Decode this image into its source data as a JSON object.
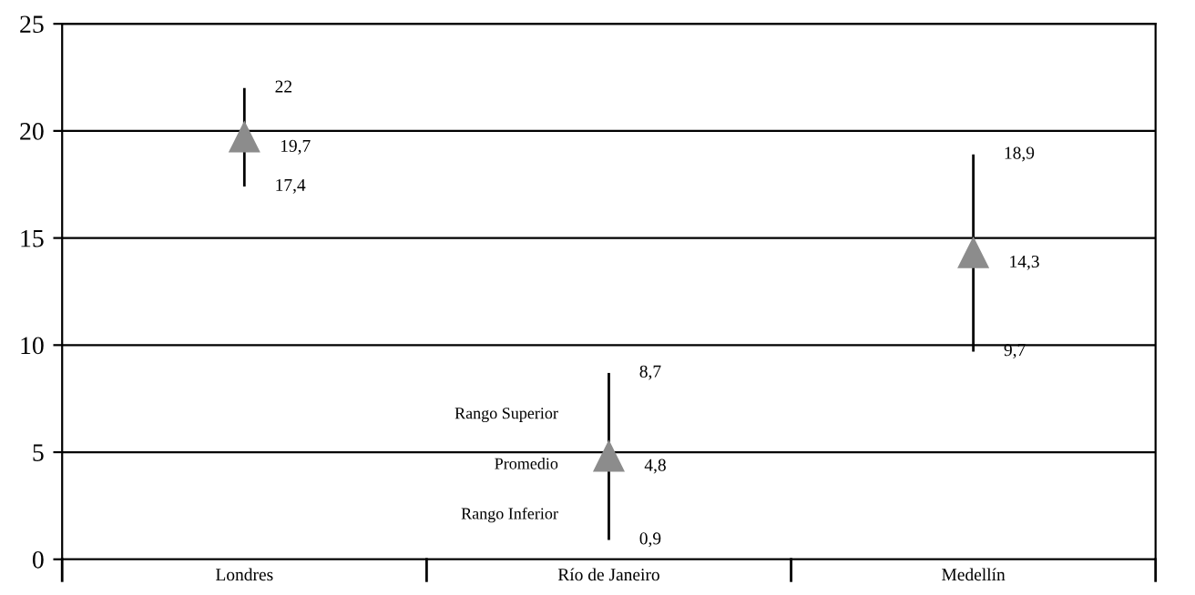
{
  "chart_data": {
    "type": "scatter",
    "categories": [
      "Londres",
      "Río de Janeiro",
      "Medellín"
    ],
    "series": [
      {
        "color": "#8c8c8c",
        "values": [
          19.7,
          4.8,
          14.3
        ],
        "errors": [
          2.3,
          3.9,
          4.6
        ],
        "value_labels": [
          "19,7",
          "4,8",
          "14,3"
        ]
      }
    ],
    "marker": "triangle",
    "ylim": [
      0,
      25
    ],
    "yticks": [
      0,
      5,
      10,
      15,
      20,
      25
    ],
    "grid": "y",
    "annotations": [
      "22",
      "17,4",
      "8,7",
      "0,9",
      "18,9",
      "9,7",
      "Rango Superior",
      "Promedio",
      "Rango Inferior"
    ]
  }
}
